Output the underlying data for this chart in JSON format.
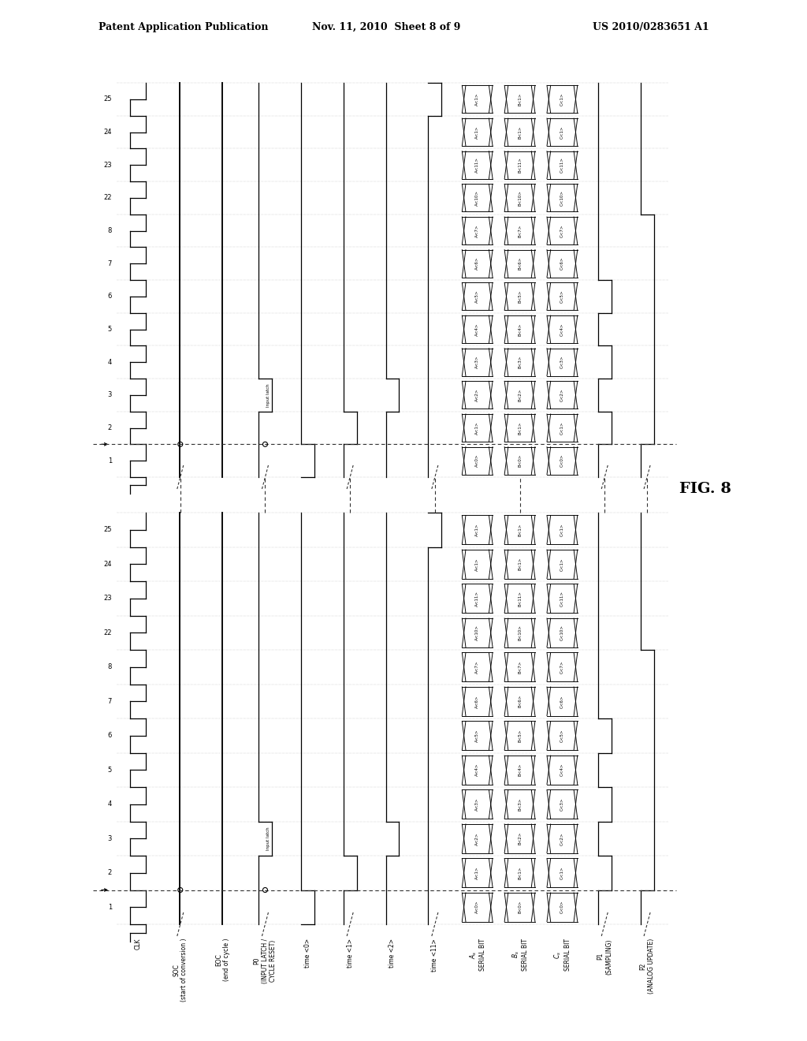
{
  "header_left": "Patent Application Publication",
  "header_center": "Nov. 11, 2010  Sheet 8 of 9",
  "header_right": "US 2010/0283651 A1",
  "fig_label": "FIG. 8",
  "bg_color": "#ffffff",
  "signal_color": "#000000",
  "cycle1_step_labels": [
    "1",
    "2",
    "3",
    "4",
    "5",
    "6",
    "7",
    "8",
    "22",
    "23",
    "24",
    "25"
  ],
  "cycle2_step_labels": [
    "1",
    "2",
    "3",
    "4",
    "5",
    "6",
    "7",
    "8",
    "22",
    "23",
    "24",
    "25"
  ],
  "bus_labels_A": [
    "A<0>",
    "A<1>",
    "A<2>",
    "A<3>",
    "A<4>",
    "A<5>",
    "A<6>",
    "A<7>",
    "A<10>",
    "A<11>",
    "A<1>",
    "A<1>"
  ],
  "bus_labels_B": [
    "B<0>",
    "B<1>",
    "B<2>",
    "B<3>",
    "B<4>",
    "B<5>",
    "B<6>",
    "B<7>",
    "B<10>",
    "B<11>",
    "B<1>",
    "B<1>"
  ],
  "bus_labels_C": [
    "C<0>",
    "C<1>",
    "C<2>",
    "C<3>",
    "C<4>",
    "C<5>",
    "C<6>",
    "C<7>",
    "C<10>",
    "C<11>",
    "C<1>",
    "C<1>"
  ],
  "signal_labels": [
    "CLK",
    "SOC\n(start of conversion )",
    "EOC\n(end of cycle )",
    "P0\n(INPUT LATCH /\nCYCLE RESET)",
    "time <0>",
    "time <1>",
    "time <2>",
    "time <11>",
    "A_s\nSERIAL BIT",
    "B_s\nSERIAL BIT",
    "C_s\nSERIAL BIT",
    "P1\n(SAMPLING)",
    "P2\n(ANALOG UPDATE)"
  ]
}
